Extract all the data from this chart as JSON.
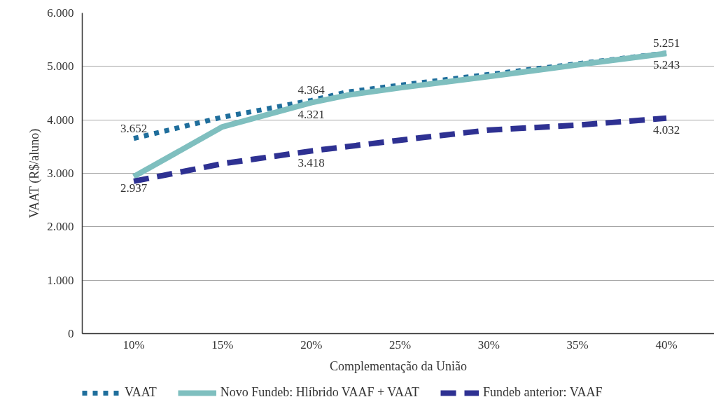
{
  "chart_data": {
    "type": "line",
    "xlabel": "Complementação da União",
    "ylabel": "VAAT (R$/aluno)",
    "xlim": [
      7.1,
      42.7
    ],
    "xticks": [
      {
        "value": 10,
        "label": "10%"
      },
      {
        "value": 15,
        "label": "15%"
      },
      {
        "value": 20,
        "label": "20%"
      },
      {
        "value": 25,
        "label": "25%"
      },
      {
        "value": 30,
        "label": "30%"
      },
      {
        "value": 35,
        "label": "35%"
      },
      {
        "value": 40,
        "label": "40%"
      }
    ],
    "ylim": [
      0,
      6000
    ],
    "yticks": [
      0,
      {
        "value": 1000,
        "label": "1.000"
      },
      {
        "value": 2000,
        "label": "2.000"
      },
      {
        "value": 3000,
        "label": "3.000"
      },
      {
        "value": 4000,
        "label": "4.000"
      },
      {
        "value": 5000,
        "label": "5.000"
      },
      {
        "value": 6000,
        "label": "6.000"
      }
    ],
    "grid": "y",
    "legend": "bottom",
    "series": [
      {
        "name": "VAAT",
        "color": "#1f6e9c",
        "line_style": "dotted",
        "x": [
          10,
          15,
          20,
          22,
          25,
          30,
          35,
          40
        ],
        "values": [
          3652,
          4050,
          4364,
          4520,
          4650,
          4850,
          5050,
          5251
        ],
        "value_labels": [
          "3.652",
          null,
          "4.364",
          null,
          null,
          null,
          null,
          "5.251"
        ]
      },
      {
        "name": "Novo Fundeb: Hlíbrido VAAF + VAAT",
        "color": "#7fbfbf",
        "line_style": "solid",
        "x": [
          10,
          15,
          20,
          22,
          25,
          30,
          35,
          40
        ],
        "values": [
          2937,
          3870,
          4321,
          4460,
          4600,
          4810,
          5030,
          5243
        ],
        "value_labels": [
          "2.937",
          null,
          "4.321",
          null,
          null,
          null,
          null,
          "5.243"
        ]
      },
      {
        "name": "Fundeb anterior: VAAF",
        "color": "#2e3192",
        "line_style": "dashed",
        "x": [
          10,
          15,
          20,
          25,
          30,
          35,
          40
        ],
        "values": [
          2850,
          3180,
          3418,
          3620,
          3810,
          3900,
          4032
        ],
        "value_labels": [
          null,
          null,
          "3.418",
          null,
          null,
          null,
          "4.032"
        ]
      }
    ]
  }
}
